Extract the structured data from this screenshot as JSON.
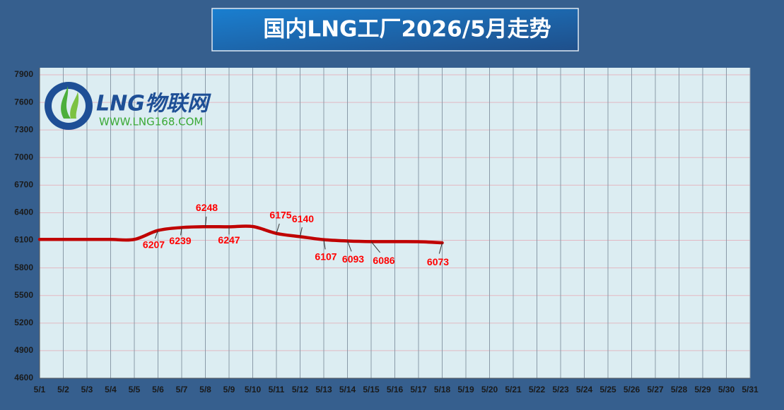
{
  "chart_data": {
    "type": "line",
    "title": "国内LNG工厂2026/5月走势",
    "logo_text": "LNG物联网",
    "logo_url": "WWW.LNG168.COM",
    "categories": [
      "5/1",
      "5/2",
      "5/3",
      "5/4",
      "5/5",
      "5/6",
      "5/7",
      "5/8",
      "5/9",
      "5/10",
      "5/11",
      "5/12",
      "5/13",
      "5/14",
      "5/15",
      "5/16",
      "5/17",
      "5/18",
      "5/19",
      "5/20",
      "5/21",
      "5/22",
      "5/23",
      "5/24",
      "5/25",
      "5/26",
      "5/27",
      "5/28",
      "5/29",
      "5/30",
      "5/31"
    ],
    "values": [
      6110,
      6110,
      6110,
      6110,
      6110,
      6207,
      6239,
      6248,
      6247,
      6250,
      6175,
      6140,
      6107,
      6093,
      6086,
      6086,
      6085,
      6073,
      null,
      null,
      null,
      null,
      null,
      null,
      null,
      null,
      null,
      null,
      null,
      null,
      null
    ],
    "value_labels": [
      null,
      null,
      null,
      null,
      null,
      "6207",
      "6239",
      "6248",
      "6247",
      null,
      "6175",
      "6140",
      "6107",
      "6093",
      "6086",
      null,
      null,
      "6073",
      null,
      null,
      null,
      null,
      null,
      null,
      null,
      null,
      null,
      null,
      null,
      null,
      null
    ],
    "color": "#c00000",
    "ylim": [
      4600,
      7900
    ],
    "yticks": [
      4600,
      4900,
      5200,
      5500,
      5800,
      6100,
      6400,
      6700,
      7000,
      7300,
      7600,
      7900
    ],
    "grid": true
  }
}
